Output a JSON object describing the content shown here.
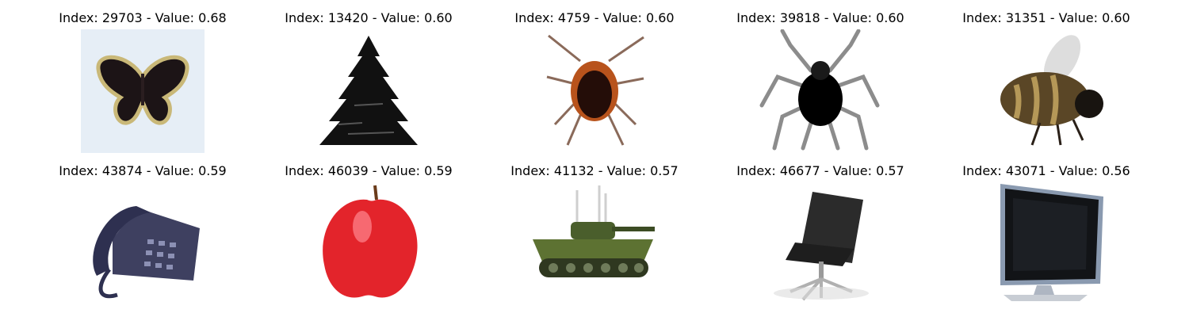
{
  "tiles": [
    {
      "title": "Index: 29703 - Value: 0.68",
      "icon": "butterfly-icon"
    },
    {
      "title": "Index: 13420 - Value: 0.60",
      "icon": "pine-tree-icon"
    },
    {
      "title": "Index: 4759 - Value: 0.60",
      "icon": "cockroach-icon"
    },
    {
      "title": "Index: 39818 - Value: 0.60",
      "icon": "spider-icon"
    },
    {
      "title": "Index: 31351 - Value: 0.60",
      "icon": "bee-icon"
    },
    {
      "title": "Index: 43874 - Value: 0.59",
      "icon": "telephone-icon"
    },
    {
      "title": "Index: 46039 - Value: 0.59",
      "icon": "apple-icon"
    },
    {
      "title": "Index: 41132 - Value: 0.57",
      "icon": "tank-icon"
    },
    {
      "title": "Index: 46677 - Value: 0.57",
      "icon": "office-chair-icon"
    },
    {
      "title": "Index: 43071 - Value: 0.56",
      "icon": "television-icon"
    }
  ]
}
